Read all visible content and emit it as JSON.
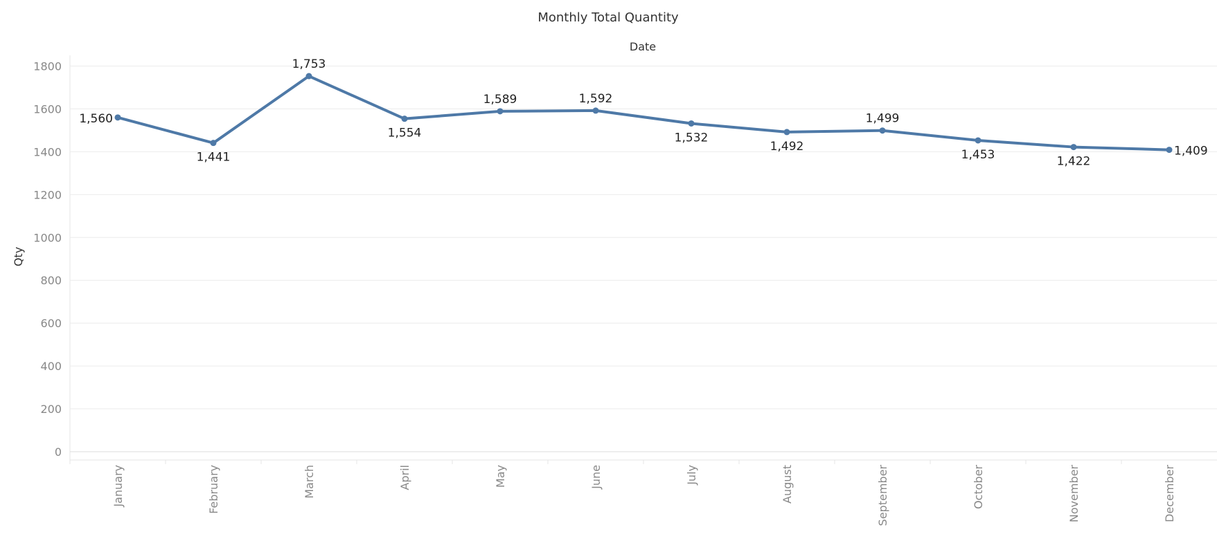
{
  "chart_data": {
    "type": "line",
    "title": "Monthly Total Quantity",
    "column_header": "Date",
    "xlabel": "",
    "ylabel": "Qty",
    "categories": [
      "January",
      "February",
      "March",
      "April",
      "May",
      "June",
      "July",
      "August",
      "September",
      "October",
      "November",
      "December"
    ],
    "values": [
      1560,
      1441,
      1753,
      1554,
      1589,
      1592,
      1532,
      1492,
      1499,
      1453,
      1422,
      1409
    ],
    "value_labels": [
      "1,560",
      "1,441",
      "1,753",
      "1,554",
      "1,589",
      "1,592",
      "1,532",
      "1,492",
      "1,499",
      "1,453",
      "1,422",
      "1,409"
    ],
    "label_placement": [
      "left",
      "below",
      "above",
      "below",
      "above",
      "above",
      "below",
      "below",
      "above",
      "below",
      "below",
      "right"
    ],
    "ylim": [
      0,
      1850
    ],
    "yticks": [
      0,
      200,
      400,
      600,
      800,
      1000,
      1200,
      1400,
      1600,
      1800
    ],
    "grid": true,
    "legend": "none",
    "colors": {
      "line": "#4e79a7"
    }
  }
}
